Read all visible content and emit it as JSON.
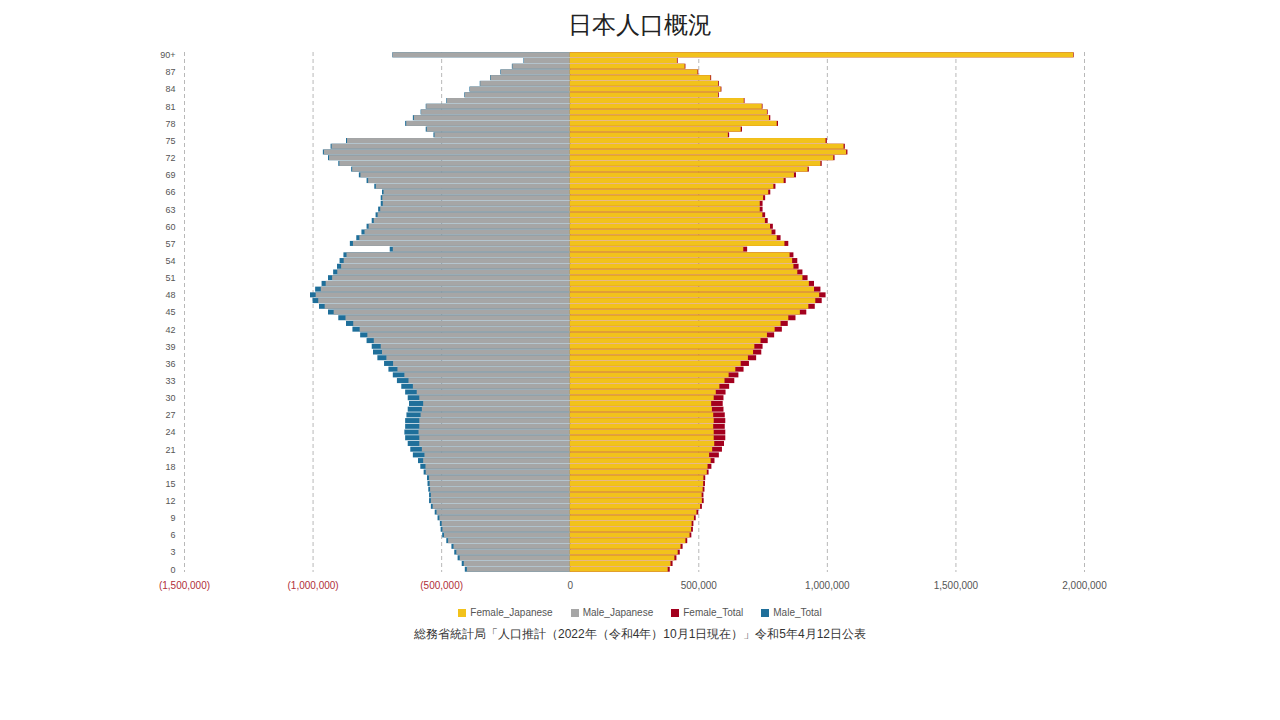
{
  "chart_data": {
    "type": "bar",
    "orientation": "horizontal",
    "stacked": false,
    "grid": true,
    "legend": "bottom",
    "title": "日本人口概況",
    "caption": "総務省統計局「人口推計（2022年（令和4年）10月1日現在）」令和5年4月12日公表",
    "categories": [
      "0",
      null,
      null,
      "3",
      null,
      null,
      "6",
      null,
      null,
      "9",
      null,
      null,
      "12",
      null,
      null,
      "15",
      null,
      null,
      "18",
      null,
      null,
      "21",
      null,
      null,
      "24",
      null,
      null,
      "27",
      null,
      null,
      "30",
      null,
      null,
      "33",
      null,
      null,
      "36",
      null,
      null,
      "39",
      null,
      null,
      "42",
      null,
      null,
      "45",
      null,
      null,
      "48",
      null,
      null,
      "51",
      null,
      null,
      "54",
      null,
      null,
      "57",
      null,
      null,
      "60",
      null,
      null,
      "63",
      null,
      null,
      "66",
      null,
      null,
      "69",
      null,
      null,
      "72",
      null,
      null,
      "75",
      null,
      null,
      "78",
      null,
      null,
      "81",
      null,
      null,
      "84",
      null,
      null,
      "87",
      null,
      null,
      "90+"
    ],
    "xlim": [
      -1500000,
      2000000
    ],
    "xticks": [
      {
        "value": -1500000,
        "label": "(1,500,000)"
      },
      {
        "value": -1000000,
        "label": "(1,000,000)"
      },
      {
        "value": -500000,
        "label": "(500,000)"
      },
      0,
      {
        "value": 500000,
        "label": "500,000"
      },
      {
        "value": 1000000,
        "label": "1,000,000"
      },
      {
        "value": 1500000,
        "label": "1,500,000"
      },
      {
        "value": 2000000,
        "label": "2,000,000"
      }
    ],
    "series": [
      {
        "name": "Female_Japanese",
        "color": "#f2c21b",
        "values": [
          381000,
          392000,
          407000,
          420000,
          431000,
          450000,
          466000,
          472000,
          474000,
          483000,
          493000,
          507000,
          514000,
          513000,
          517000,
          519000,
          520000,
          533000,
          536000,
          548000,
          542000,
          554000,
          562000,
          560000,
          560000,
          558000,
          560000,
          558000,
          553000,
          550000,
          560000,
          568000,
          582000,
          602000,
          618000,
          644000,
          665000,
          693000,
          713000,
          718000,
          742000,
          767000,
          797000,
          820000,
          850000,
          895000,
          928000,
          955000,
          970000,
          950000,
          930000,
          905000,
          885000,
          870000,
          865000,
          855000,
          675000,
          835000,
          805000,
          785000,
          779000,
          759000,
          749000,
          739000,
          739000,
          752000,
          772000,
          792000,
          832000,
          872000,
          925000,
          975000,
          1025000,
          1075000,
          1065000,
          995000,
          615000,
          665000,
          805000,
          775000,
          767000,
          747000,
          677000,
          577000,
          587000,
          577000,
          547000,
          497000,
          447000,
          417000,
          1958000
        ]
      },
      {
        "name": "Male_Japanese",
        "color": "#a6a6a6",
        "values": [
          -400000,
          -412000,
          -428000,
          -441000,
          -452000,
          -473000,
          -489000,
          -495000,
          -498000,
          -507000,
          -518000,
          -533000,
          -540000,
          -540000,
          -543000,
          -545000,
          -547000,
          -560000,
          -561000,
          -570000,
          -565000,
          -575000,
          -585000,
          -585000,
          -588000,
          -585000,
          -585000,
          -580000,
          -575000,
          -570000,
          -585000,
          -595000,
          -610000,
          -627000,
          -643000,
          -670000,
          -687000,
          -713000,
          -730000,
          -735000,
          -762000,
          -787000,
          -817000,
          -842000,
          -872000,
          -918000,
          -953000,
          -978000,
          -988000,
          -968000,
          -949000,
          -924000,
          -904000,
          -889000,
          -879000,
          -868000,
          -688000,
          -843000,
          -818000,
          -798000,
          -782000,
          -762000,
          -747000,
          -737000,
          -727000,
          -729000,
          -724000,
          -754000,
          -784000,
          -814000,
          -846000,
          -896000,
          -936000,
          -956000,
          -926000,
          -866000,
          -526000,
          -556000,
          -636000,
          -606000,
          -578000,
          -558000,
          -478000,
          -408000,
          -388000,
          -348000,
          -308000,
          -268000,
          -223000,
          -178000,
          -689000
        ]
      },
      {
        "name": "Female_Total",
        "color": "#a3001e",
        "values": [
          389000,
          400000,
          415000,
          428000,
          439000,
          457000,
          473000,
          479000,
          481000,
          490000,
          500000,
          514000,
          521000,
          520000,
          524000,
          526000,
          527000,
          540000,
          551000,
          563000,
          580000,
          592000,
          600000,
          605000,
          605000,
          603000,
          605000,
          603000,
          598000,
          595000,
          598000,
          606000,
          620000,
          640000,
          656000,
          676000,
          697000,
          725000,
          745000,
          750000,
          770000,
          795000,
          825000,
          848000,
          878000,
          920000,
          953000,
          980000,
          995000,
          975000,
          950000,
          925000,
          905000,
          890000,
          885000,
          870000,
          690000,
          850000,
          820000,
          800000,
          790000,
          770000,
          760000,
          750000,
          750000,
          760000,
          780000,
          800000,
          840000,
          880000,
          930000,
          980000,
          1030000,
          1080000,
          1070000,
          1000000,
          620000,
          670000,
          810000,
          780000,
          770000,
          750000,
          680000,
          580000,
          590000,
          580000,
          550000,
          500000,
          450000,
          420000,
          1960000
        ]
      },
      {
        "name": "Male_Total",
        "color": "#1f6f9a",
        "values": [
          -408000,
          -420000,
          -436000,
          -449000,
          -460000,
          -480000,
          -496000,
          -502000,
          -505000,
          -514000,
          -525000,
          -540000,
          -547000,
          -547000,
          -550000,
          -553000,
          -555000,
          -568000,
          -581000,
          -590000,
          -610000,
          -620000,
          -630000,
          -640000,
          -643000,
          -640000,
          -640000,
          -635000,
          -630000,
          -625000,
          -630000,
          -640000,
          -655000,
          -672000,
          -688000,
          -705000,
          -722000,
          -748000,
          -765000,
          -770000,
          -790000,
          -815000,
          -845000,
          -870000,
          -900000,
          -940000,
          -975000,
          -1000000,
          -1010000,
          -990000,
          -965000,
          -940000,
          -920000,
          -905000,
          -895000,
          -880000,
          -700000,
          -855000,
          -830000,
          -810000,
          -790000,
          -770000,
          -755000,
          -745000,
          -735000,
          -735000,
          -730000,
          -760000,
          -790000,
          -820000,
          -850000,
          -900000,
          -940000,
          -960000,
          -930000,
          -870000,
          -530000,
          -560000,
          -640000,
          -610000,
          -580000,
          -560000,
          -480000,
          -410000,
          -390000,
          -350000,
          -310000,
          -270000,
          -225000,
          -180000,
          -690000
        ]
      }
    ]
  }
}
